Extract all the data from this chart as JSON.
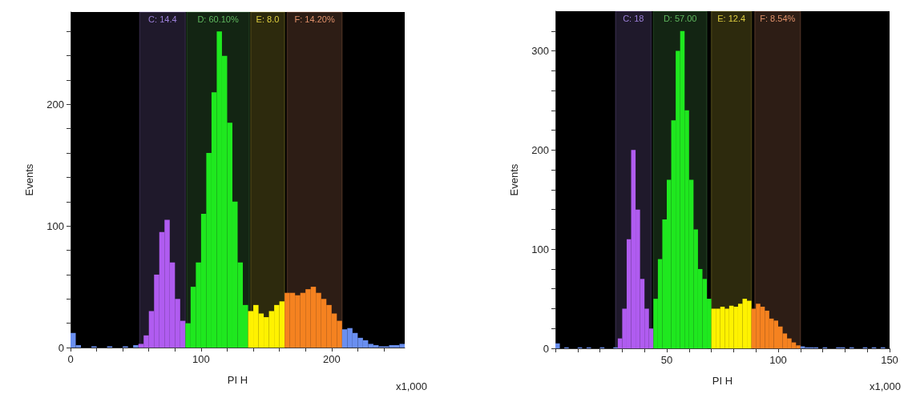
{
  "chart_data": [
    {
      "type": "histogram",
      "xlabel": "PI H",
      "ylabel": "Events",
      "annotations": [
        "x1,000"
      ],
      "bins": [
        0,
        4,
        8,
        12,
        16,
        20,
        24,
        28,
        32,
        36,
        40,
        44,
        48,
        52,
        56,
        60,
        64,
        68,
        72,
        76,
        80,
        84,
        88,
        92,
        96,
        100,
        104,
        108,
        112,
        116,
        120,
        124,
        128,
        132,
        136,
        140,
        144,
        148,
        152,
        156,
        160,
        164,
        168,
        172,
        176,
        180,
        184,
        188,
        192,
        196,
        200,
        204,
        208,
        212,
        216,
        220,
        224,
        228,
        232,
        236,
        240,
        244,
        248,
        252,
        256
      ],
      "values": [
        12,
        2,
        0,
        0,
        1,
        0,
        0,
        1,
        0,
        0,
        1,
        0,
        2,
        3,
        10,
        30,
        60,
        95,
        105,
        70,
        40,
        22,
        20,
        50,
        70,
        110,
        160,
        210,
        260,
        240,
        185,
        120,
        70,
        35,
        30,
        35,
        28,
        25,
        30,
        35,
        38,
        45,
        45,
        43,
        45,
        48,
        50,
        45,
        40,
        35,
        28,
        22,
        15,
        16,
        12,
        8,
        6,
        3,
        2,
        1,
        1,
        2,
        2,
        3
      ],
      "colors": [
        "#6a8ff0",
        "#6a8ff0",
        "#6a8ff0",
        "#6a8ff0",
        "#6a8ff0",
        "#6a8ff0",
        "#6a8ff0",
        "#6a8ff0",
        "#6a8ff0",
        "#6a8ff0",
        "#6a8ff0",
        "#6a8ff0",
        "#6a8ff0",
        "#b05cf0",
        "#b05cf0",
        "#b05cf0",
        "#b05cf0",
        "#b05cf0",
        "#b05cf0",
        "#b05cf0",
        "#b05cf0",
        "#b05cf0",
        "#1fe81f",
        "#1fe81f",
        "#1fe81f",
        "#1fe81f",
        "#1fe81f",
        "#1fe81f",
        "#1fe81f",
        "#1fe81f",
        "#1fe81f",
        "#1fe81f",
        "#1fe81f",
        "#1fe81f",
        "#fff200",
        "#fff200",
        "#fff200",
        "#fff200",
        "#fff200",
        "#fff200",
        "#fff200",
        "#f58220",
        "#f58220",
        "#f58220",
        "#f58220",
        "#f58220",
        "#f58220",
        "#f58220",
        "#f58220",
        "#f58220",
        "#f58220",
        "#f58220",
        "#6a8ff0",
        "#6a8ff0",
        "#6a8ff0",
        "#6a8ff0",
        "#6a8ff0",
        "#6a8ff0",
        "#6a8ff0",
        "#6a8ff0",
        "#6a8ff0",
        "#6a8ff0",
        "#6a8ff0",
        "#6a8ff0"
      ],
      "xlim": [
        0,
        256
      ],
      "ylim": [
        0,
        276
      ],
      "xticks": [
        0,
        {
          "value": 20,
          "label": null
        },
        {
          "value": 40,
          "label": null
        },
        {
          "value": 60,
          "label": null
        },
        {
          "value": 80,
          "label": null
        },
        100,
        {
          "value": 120,
          "label": null
        },
        {
          "value": 140,
          "label": null
        },
        {
          "value": 160,
          "label": null
        },
        {
          "value": 180,
          "label": null
        },
        200,
        {
          "value": 220,
          "label": null
        },
        {
          "value": 240,
          "label": null
        }
      ],
      "yticks": [
        0,
        {
          "value": 20,
          "label": null
        },
        {
          "value": 40,
          "label": null
        },
        {
          "value": 60,
          "label": null
        },
        {
          "value": 80,
          "label": null
        },
        100,
        {
          "value": 120,
          "label": null
        },
        {
          "value": 140,
          "label": null
        },
        {
          "value": 160,
          "label": null
        },
        {
          "value": 180,
          "label": null
        },
        200,
        {
          "value": 220,
          "label": null
        },
        {
          "value": 240,
          "label": null
        },
        {
          "value": 260,
          "label": null
        }
      ],
      "bands": [
        {
          "axis": "x",
          "from": 53,
          "to": 88,
          "label": "C: 14.4",
          "color": "#9b7fd8"
        },
        {
          "axis": "x",
          "from": 89,
          "to": 137,
          "label": "D: 60.10%",
          "color": "#5fb85f"
        },
        {
          "axis": "x",
          "from": 138,
          "to": 164,
          "label": "E: 8.0",
          "color": "#e0d040"
        },
        {
          "axis": "x",
          "from": 166,
          "to": 208,
          "label": "F: 14.20%",
          "color": "#e0906a"
        }
      ]
    },
    {
      "type": "histogram",
      "xlabel": "PI H",
      "ylabel": "Events",
      "annotations": [
        "x1,000"
      ],
      "bins": [
        0,
        2,
        4,
        6,
        8,
        10,
        12,
        14,
        16,
        18,
        20,
        22,
        24,
        26,
        28,
        30,
        32,
        34,
        36,
        38,
        40,
        42,
        44,
        46,
        48,
        50,
        52,
        54,
        56,
        58,
        60,
        62,
        64,
        66,
        68,
        70,
        72,
        74,
        76,
        78,
        80,
        82,
        84,
        86,
        88,
        90,
        92,
        94,
        96,
        98,
        100,
        102,
        104,
        106,
        108,
        110,
        112,
        114,
        116,
        118,
        120,
        122,
        124,
        126,
        128,
        130,
        132,
        134,
        136,
        138,
        140,
        142,
        144,
        146,
        148,
        150
      ],
      "values": [
        5,
        0,
        1,
        0,
        0,
        1,
        0,
        1,
        0,
        0,
        1,
        0,
        0,
        1,
        10,
        40,
        110,
        200,
        140,
        70,
        40,
        20,
        50,
        90,
        130,
        170,
        230,
        300,
        320,
        240,
        170,
        120,
        80,
        70,
        50,
        40,
        40,
        42,
        40,
        43,
        42,
        45,
        50,
        48,
        40,
        45,
        42,
        38,
        30,
        28,
        22,
        15,
        10,
        6,
        3,
        2,
        1,
        1,
        1,
        0,
        1,
        0,
        0,
        1,
        1,
        0,
        1,
        0,
        0,
        1,
        0,
        1,
        0,
        1,
        0
      ],
      "colors": [
        "#6a8ff0",
        "#6a8ff0",
        "#6a8ff0",
        "#6a8ff0",
        "#6a8ff0",
        "#6a8ff0",
        "#6a8ff0",
        "#6a8ff0",
        "#6a8ff0",
        "#6a8ff0",
        "#6a8ff0",
        "#6a8ff0",
        "#6a8ff0",
        "#6a8ff0",
        "#b05cf0",
        "#b05cf0",
        "#b05cf0",
        "#b05cf0",
        "#b05cf0",
        "#b05cf0",
        "#b05cf0",
        "#b05cf0",
        "#1fe81f",
        "#1fe81f",
        "#1fe81f",
        "#1fe81f",
        "#1fe81f",
        "#1fe81f",
        "#1fe81f",
        "#1fe81f",
        "#1fe81f",
        "#1fe81f",
        "#1fe81f",
        "#1fe81f",
        "#1fe81f",
        "#fff200",
        "#fff200",
        "#fff200",
        "#fff200",
        "#fff200",
        "#fff200",
        "#fff200",
        "#fff200",
        "#fff200",
        "#f58220",
        "#f58220",
        "#f58220",
        "#f58220",
        "#f58220",
        "#f58220",
        "#f58220",
        "#f58220",
        "#f58220",
        "#f58220",
        "#f58220",
        "#6a8ff0",
        "#6a8ff0",
        "#6a8ff0",
        "#6a8ff0",
        "#6a8ff0",
        "#6a8ff0",
        "#6a8ff0",
        "#6a8ff0",
        "#6a8ff0",
        "#6a8ff0",
        "#6a8ff0",
        "#6a8ff0",
        "#6a8ff0",
        "#6a8ff0",
        "#6a8ff0",
        "#6a8ff0",
        "#6a8ff0",
        "#6a8ff0",
        "#6a8ff0",
        "#6a8ff0"
      ],
      "xlim": [
        0,
        150
      ],
      "ylim": [
        0,
        340
      ],
      "xticks": [
        {
          "value": 0,
          "label": null
        },
        {
          "value": 10,
          "label": null
        },
        {
          "value": 20,
          "label": null
        },
        {
          "value": 30,
          "label": null
        },
        {
          "value": 40,
          "label": null
        },
        50,
        {
          "value": 60,
          "label": null
        },
        {
          "value": 70,
          "label": null
        },
        {
          "value": 80,
          "label": null
        },
        {
          "value": 90,
          "label": null
        },
        100,
        {
          "value": 110,
          "label": null
        },
        {
          "value": 120,
          "label": null
        },
        {
          "value": 130,
          "label": null
        },
        {
          "value": 140,
          "label": null
        },
        150
      ],
      "yticks": [
        0,
        {
          "value": 20,
          "label": null
        },
        {
          "value": 40,
          "label": null
        },
        {
          "value": 60,
          "label": null
        },
        {
          "value": 80,
          "label": null
        },
        100,
        {
          "value": 120,
          "label": null
        },
        {
          "value": 140,
          "label": null
        },
        {
          "value": 160,
          "label": null
        },
        {
          "value": 180,
          "label": null
        },
        200,
        {
          "value": 220,
          "label": null
        },
        {
          "value": 240,
          "label": null
        },
        {
          "value": 260,
          "label": null
        },
        {
          "value": 280,
          "label": null
        },
        300,
        {
          "value": 320,
          "label": null
        }
      ],
      "bands": [
        {
          "axis": "x",
          "from": 27,
          "to": 43,
          "label": "C: 18",
          "color": "#9b7fd8"
        },
        {
          "axis": "x",
          "from": 44,
          "to": 68,
          "label": "D: 57.00",
          "color": "#5fb85f"
        },
        {
          "axis": "x",
          "from": 70,
          "to": 88,
          "label": "E: 12.4",
          "color": "#e0d040"
        },
        {
          "axis": "x",
          "from": 89.5,
          "to": 110,
          "label": "F: 8.54%",
          "color": "#e0906a"
        }
      ]
    }
  ]
}
